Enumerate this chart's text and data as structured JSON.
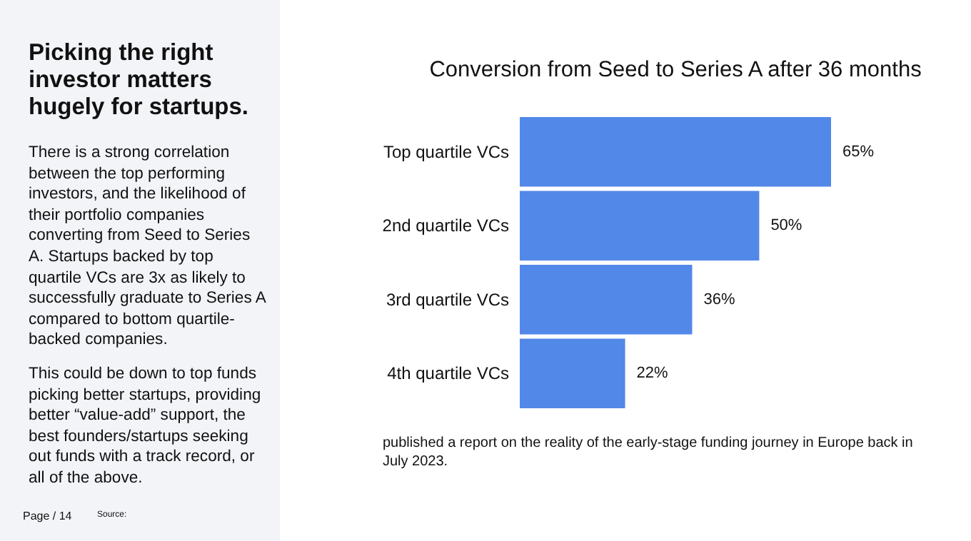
{
  "chart_data": {
    "type": "bar",
    "orientation": "horizontal",
    "title": "Conversion from Seed to Series A after 36 months",
    "subtitle": "Picking the right investor matters hugely for startups.",
    "categories": [
      "Top quartile VCs",
      "2nd quartile VCs",
      "3rd quartile VCs",
      "4th quartile VCs"
    ],
    "values": [
      65,
      50,
      36,
      22
    ],
    "color": "#5288e8",
    "value_labels": [
      "65%",
      "50%",
      "36%",
      "22%"
    ],
    "grid": false,
    "annotations": [
      "There is a strong correlation between the top performing investors, and the likelihood of their portfolio companies converting from Seed to Series A. Startups backed by top quartile VCs are 3x as likely to successfully graduate to Series A compared to bottom quartile-backed companies.",
      "This could be down to top funds picking better startups, providing better “value-add” support, the best founders/startups seeking out funds with a track record, or all of the above.",
      "published a report on the reality of the early-stage funding journey in Europe back in July 2023.",
      "Page / 14",
      "Source:"
    ]
  }
}
